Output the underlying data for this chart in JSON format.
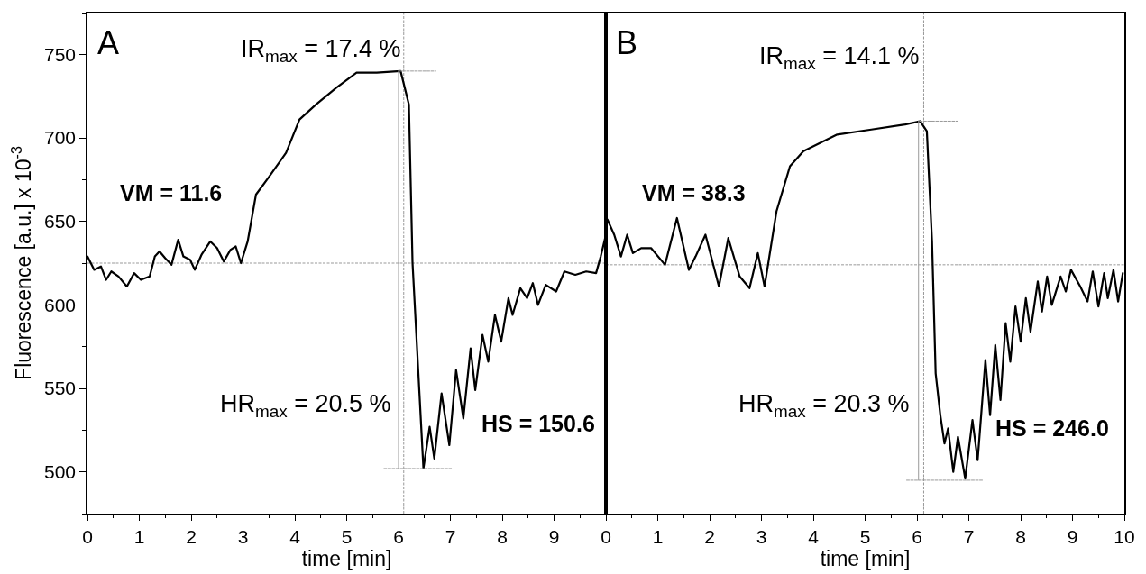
{
  "chart_data": [
    {
      "type": "line",
      "xlabel": "time [min]",
      "ylabel": "Fluorescence [a.u.] x 10$^{-3}$",
      "xlim": [
        0,
        10
      ],
      "xticks": [
        0,
        1,
        2,
        3,
        4,
        5,
        6,
        7,
        8,
        9
      ],
      "ylim": [
        475,
        775
      ],
      "yticks": [
        500,
        550,
        600,
        650,
        700,
        750
      ],
      "grid": false,
      "marker": "none",
      "line_style": "solid",
      "series": [
        {
          "color": "#000000",
          "x": [
            0,
            0.13,
            0.26,
            0.36,
            0.46,
            0.6,
            0.76,
            0.9,
            1.03,
            1.2,
            1.3,
            1.39,
            1.5,
            1.62,
            1.75,
            1.85,
            1.98,
            2.07,
            2.2,
            2.37,
            2.5,
            2.63,
            2.76,
            2.86,
            2.96,
            3.09,
            3.25,
            3.51,
            3.83,
            4.09,
            4.41,
            4.8,
            5.19,
            5.58,
            6.04,
            6.2,
            6.27,
            6.48,
            6.6,
            6.69,
            6.83,
            6.98,
            7.11,
            7.25,
            7.39,
            7.48,
            7.62,
            7.73,
            7.86,
            7.98,
            8.12,
            8.2,
            8.35,
            8.48,
            8.59,
            8.69,
            8.84,
            9.04,
            9.2,
            9.41,
            9.62,
            9.81,
            9.9,
            10
          ],
          "values": [
            629,
            621,
            623,
            615,
            620,
            617,
            611,
            619,
            615,
            617,
            629,
            632,
            628,
            624,
            639,
            629,
            627,
            621,
            630,
            638,
            634,
            626,
            633,
            635,
            625,
            638,
            666,
            677,
            691,
            711,
            720,
            730,
            739,
            739,
            740,
            720,
            625,
            502,
            527,
            508,
            547,
            516,
            561,
            532,
            574,
            549,
            582,
            566,
            594,
            578,
            604,
            594,
            610,
            604,
            613,
            600,
            612,
            608,
            620,
            618,
            620,
            619,
            629,
            642
          ]
        },
        {
          "color": "#999999",
          "line_style": "dashed",
          "x": [
            6.0,
            6.72
          ],
          "values": [
            740,
            740
          ]
        },
        {
          "color": "#999999",
          "line_style": "dashed",
          "x": [
            5.72,
            7.02
          ],
          "values": [
            502,
            502
          ]
        },
        {
          "color": "#999999",
          "line_style": "solid",
          "x": [
            6.0,
            6.0
          ],
          "values": [
            740,
            502
          ]
        }
      ],
      "ref_lines": [
        {
          "axis": "y",
          "value": 625,
          "color": "#999999",
          "line_style": "dashed"
        },
        {
          "axis": "x",
          "value": 6.1,
          "color": "#999999",
          "line_style": "dashed"
        }
      ],
      "annotations": [
        "A",
        "IR$_{max}$ = 17.4 %",
        "VM = 11.6",
        "HR$_{max}$ = 20.5 %",
        "HS = 150.6"
      ]
    },
    {
      "type": "line",
      "xlabel": "time [min]",
      "xlim": [
        0,
        10
      ],
      "xticks": [
        0,
        1,
        2,
        3,
        4,
        5,
        6,
        7,
        8,
        9,
        10
      ],
      "ylim": [
        475,
        775
      ],
      "yticks": [
        500,
        550,
        600,
        650,
        700,
        750
      ],
      "tick_labels": "x",
      "grid": false,
      "marker": "none",
      "line_style": "solid",
      "series": [
        {
          "color": "#000000",
          "x": [
            0,
            0.03,
            0.16,
            0.29,
            0.41,
            0.52,
            0.68,
            0.87,
            1.14,
            1.37,
            1.6,
            1.73,
            1.92,
            2.18,
            2.36,
            2.58,
            2.77,
            2.93,
            3.06,
            3.29,
            3.55,
            3.81,
            4.46,
            5.12,
            5.77,
            6.06,
            6.19,
            6.29,
            6.36,
            6.45,
            6.53,
            6.6,
            6.7,
            6.79,
            6.93,
            7.07,
            7.17,
            7.32,
            7.41,
            7.51,
            7.61,
            7.71,
            7.8,
            7.9,
            8.0,
            8.1,
            8.19,
            8.33,
            8.41,
            8.51,
            8.6,
            8.77,
            8.87,
            8.97,
            9.15,
            9.29,
            9.39,
            9.5,
            9.61,
            9.68,
            9.79,
            9.88,
            9.97
          ],
          "values": [
            652,
            651,
            642,
            629,
            642,
            631,
            634,
            634,
            624,
            652,
            621,
            629,
            642,
            611,
            640,
            617,
            610,
            631,
            611,
            656,
            683,
            692,
            702,
            705,
            708,
            710,
            704,
            638,
            559,
            534,
            517,
            526,
            500,
            521,
            496,
            531,
            507,
            567,
            534,
            576,
            543,
            589,
            566,
            599,
            578,
            604,
            584,
            614,
            596,
            617,
            600,
            617,
            608,
            621,
            611,
            602,
            620,
            599,
            619,
            604,
            621,
            602,
            619
          ]
        },
        {
          "color": "#999999",
          "line_style": "dashed",
          "x": [
            6.05,
            6.79
          ],
          "values": [
            710,
            710
          ]
        },
        {
          "color": "#999999",
          "line_style": "dashed",
          "x": [
            5.8,
            7.27
          ],
          "values": [
            495,
            495
          ]
        },
        {
          "color": "#999999",
          "line_style": "solid",
          "x": [
            6.03,
            6.03
          ],
          "values": [
            710,
            495
          ]
        }
      ],
      "ref_lines": [
        {
          "axis": "y",
          "value": 624,
          "color": "#999999",
          "line_style": "dashed"
        },
        {
          "axis": "x",
          "value": 6.13,
          "color": "#999999",
          "line_style": "dashed"
        }
      ],
      "annotations": [
        "B",
        "IR$_{max}$ = 14.1 %",
        "VM = 38.3",
        "HR$_{max}$ = 20.3 %",
        "HS = 246.0"
      ]
    }
  ]
}
